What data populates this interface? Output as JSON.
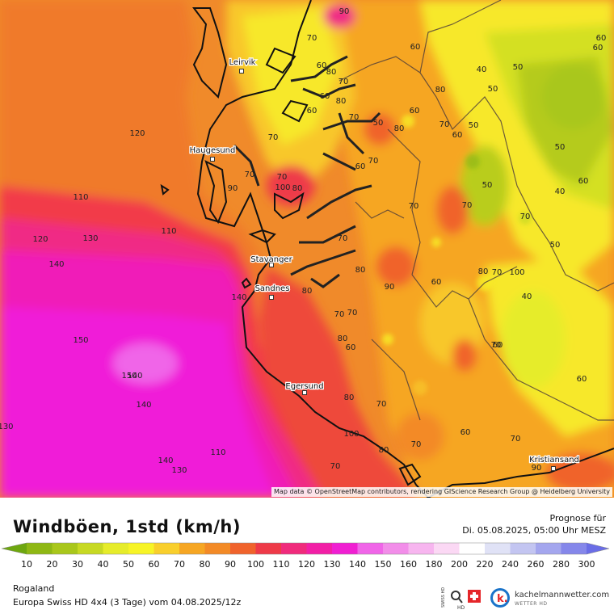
{
  "map": {
    "region_label": "Rogaland",
    "attribution": "Map data © OpenStreetMap contributors, rendering GIScience Research Group @ Heidelberg University",
    "cities": [
      {
        "name": "Leirvik"
      },
      {
        "name": "Haugesund"
      },
      {
        "name": "Stavanger"
      },
      {
        "name": "Sandnes"
      },
      {
        "name": "Egersund"
      },
      {
        "name": "Kristiansand"
      }
    ],
    "contour_labels": [
      "70",
      "60",
      "80",
      "70",
      "60",
      "80",
      "70",
      "70",
      "70",
      "70",
      "50",
      "80",
      "60",
      "70",
      "80",
      "60",
      "90",
      "100",
      "110",
      "120",
      "130",
      "140",
      "140",
      "150",
      "140",
      "140",
      "130",
      "140",
      "130",
      "110",
      "100",
      "90",
      "80",
      "80",
      "70",
      "80",
      "90",
      "80",
      "70",
      "60",
      "70",
      "70",
      "60",
      "70",
      "70",
      "80",
      "100",
      "70",
      "70",
      "50",
      "50",
      "40",
      "50",
      "50",
      "40",
      "60",
      "50",
      "60",
      "40",
      "60",
      "60",
      "50",
      "60",
      "70",
      "60",
      "70",
      "70",
      "60",
      "70",
      "90",
      "70",
      "80",
      "80",
      "120",
      "110",
      "60",
      "60",
      "150"
    ]
  },
  "title": "Windböen, 1std (km/h)",
  "forecast": {
    "label": "Prognose für",
    "date": "Di. 05.08.2025, 05:00 Uhr MESZ"
  },
  "legend": {
    "values": [
      "10",
      "20",
      "30",
      "40",
      "50",
      "60",
      "70",
      "80",
      "90",
      "100",
      "110",
      "120",
      "130",
      "140",
      "150",
      "160",
      "180",
      "200",
      "220",
      "240",
      "260",
      "280",
      "300"
    ],
    "colors": [
      "#6ea70f",
      "#8fb814",
      "#a9c71b",
      "#c7d923",
      "#e6ec2a",
      "#f7f426",
      "#f9cf2c",
      "#f6a623",
      "#f38a26",
      "#f0632c",
      "#ee3a48",
      "#f02b7c",
      "#f21fa6",
      "#f01fd2",
      "#f065e8",
      "#f28de9",
      "#f7b5ef",
      "#fbd8f4",
      "#ffffff",
      "#e0e2f6",
      "#c3c5f1",
      "#a4a6ee",
      "#8587ea",
      "#6a6de6"
    ]
  },
  "footer": {
    "model": "Europa Swiss HD 4x4 (3 Tage) vom 04.08.2025/12z",
    "brand": "kachelmannwetter.com",
    "brand_sub": "WETTER HD",
    "swiss_hd": "SWISS HD"
  }
}
